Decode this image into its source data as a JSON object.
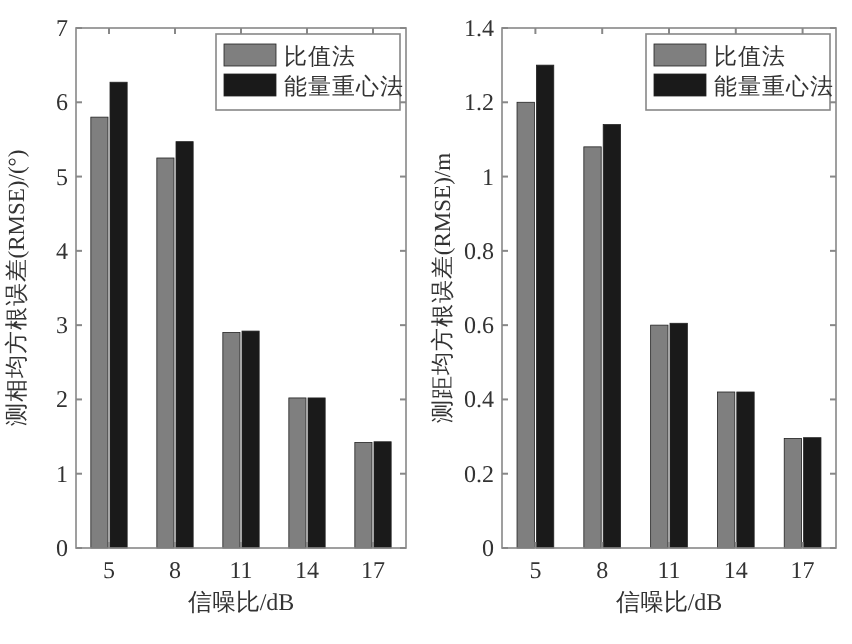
{
  "chart_data": [
    {
      "type": "bar",
      "xlabel": "信噪比/dB",
      "ylabel": "测相均方根误差(RMSE)/(°)",
      "categories": [
        "5",
        "8",
        "11",
        "14",
        "17"
      ],
      "ylim": [
        0,
        7
      ],
      "yticks": [
        0,
        1,
        2,
        3,
        4,
        5,
        6,
        7
      ],
      "legend": "top right",
      "grid": false,
      "series": [
        {
          "name": "比值法",
          "color": "#7f7f7f",
          "values": [
            5.8,
            5.25,
            2.9,
            2.02,
            1.42
          ]
        },
        {
          "name": "能量重心法",
          "color": "#1a1a1a",
          "values": [
            6.27,
            5.47,
            2.92,
            2.02,
            1.43
          ]
        }
      ]
    },
    {
      "type": "bar",
      "xlabel": "信噪比/dB",
      "ylabel": "测距均方根误差(RMSE)/m",
      "categories": [
        "5",
        "8",
        "11",
        "14",
        "17"
      ],
      "ylim": [
        0,
        1.4
      ],
      "yticks": [
        0,
        0.2,
        0.4,
        0.6,
        0.8,
        1,
        1.2,
        1.4
      ],
      "legend": "top right",
      "grid": false,
      "series": [
        {
          "name": "比值法",
          "color": "#7f7f7f",
          "values": [
            1.2,
            1.08,
            0.6,
            0.42,
            0.295
          ]
        },
        {
          "name": "能量重心法",
          "color": "#1a1a1a",
          "values": [
            1.3,
            1.14,
            0.605,
            0.42,
            0.297
          ]
        }
      ]
    }
  ]
}
